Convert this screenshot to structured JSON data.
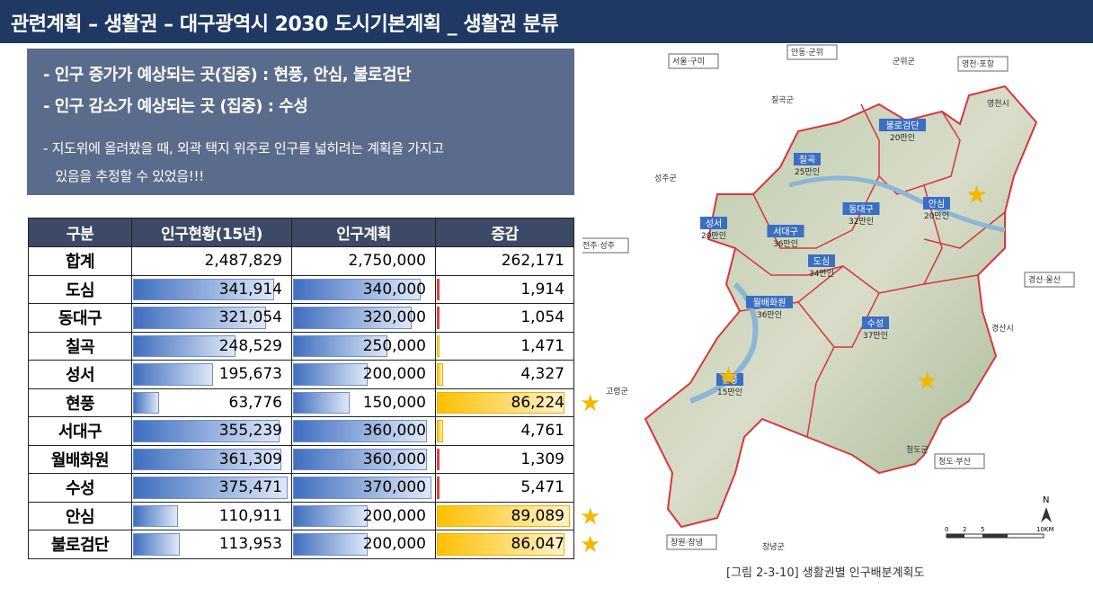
{
  "header": {
    "title": "관련계획 – 생활권 – 대구광역시 2030 도시기본계획 _ 생활권 분류"
  },
  "summary": {
    "bullet1": "-   인구 증가가 예상되는 곳(집중) : 현풍, 안심, 불로검단",
    "bullet2": "-   인구 감소가 예상되는 곳 (집중) : 수성",
    "note_line1": "- 지도위에 올려봤을 때, 외곽 택지 위주로 인구를 넓히려는 계획을 가지고",
    "note_line2": "   있음을 추정할 수 있었음!!!"
  },
  "table": {
    "headers": [
      "구분",
      "인구현황(15년)",
      "인구계획",
      "증감"
    ],
    "rows": [
      {
        "name": "합계",
        "current": "2,487,829",
        "plan": "2,750,000",
        "change": "262,171",
        "cur_frac": 0,
        "plan_frac": 0,
        "chg_frac": 0,
        "chg_type": "none",
        "star": false
      },
      {
        "name": "도심",
        "current": "341,914",
        "plan": "340,000",
        "change": "1,914",
        "cur_frac": 0.91,
        "plan_frac": 0.92,
        "chg_frac": 0.02,
        "chg_type": "neg",
        "star": false
      },
      {
        "name": "동대구",
        "current": "321,054",
        "plan": "320,000",
        "change": "1,054",
        "cur_frac": 0.86,
        "plan_frac": 0.86,
        "chg_frac": 0.01,
        "chg_type": "neg",
        "star": false
      },
      {
        "name": "칠곡",
        "current": "248,529",
        "plan": "250,000",
        "change": "1,471",
        "cur_frac": 0.66,
        "plan_frac": 0.68,
        "chg_frac": 0.02,
        "chg_type": "gold",
        "star": false
      },
      {
        "name": "성서",
        "current": "195,673",
        "plan": "200,000",
        "change": "4,327",
        "cur_frac": 0.52,
        "plan_frac": 0.54,
        "chg_frac": 0.05,
        "chg_type": "gold",
        "star": false
      },
      {
        "name": "현풍",
        "current": "63,776",
        "plan": "150,000",
        "change": "86,224",
        "cur_frac": 0.17,
        "plan_frac": 0.41,
        "chg_frac": 0.96,
        "chg_type": "gold",
        "star": true
      },
      {
        "name": "서대구",
        "current": "355,239",
        "plan": "360,000",
        "change": "4,761",
        "cur_frac": 0.95,
        "plan_frac": 0.97,
        "chg_frac": 0.05,
        "chg_type": "gold",
        "star": false
      },
      {
        "name": "월배화원",
        "current": "361,309",
        "plan": "360,000",
        "change": "1,309",
        "cur_frac": 0.96,
        "plan_frac": 0.97,
        "chg_frac": 0.01,
        "chg_type": "neg",
        "star": false
      },
      {
        "name": "수성",
        "current": "375,471",
        "plan": "370,000",
        "change": "5,471",
        "cur_frac": 1.0,
        "plan_frac": 1.0,
        "chg_frac": 0.06,
        "chg_type": "neg",
        "star": false
      },
      {
        "name": "안심",
        "current": "110,911",
        "plan": "200,000",
        "change": "89,089",
        "cur_frac": 0.29,
        "plan_frac": 0.54,
        "chg_frac": 1.0,
        "chg_type": "gold",
        "star": true
      },
      {
        "name": "불로검단",
        "current": "113,953",
        "plan": "200,000",
        "change": "86,047",
        "cur_frac": 0.3,
        "plan_frac": 0.54,
        "chg_frac": 0.96,
        "chg_type": "gold",
        "star": true
      }
    ]
  },
  "map": {
    "caption": "[그림 2-3-10]  생활권별 인구배분계획도",
    "north": "N",
    "scale": [
      "0",
      "2",
      "5",
      "10KM"
    ],
    "outer_labels": [
      "서울·구미",
      "안동·군위",
      "군위군",
      "영천·포항",
      "칠곡군",
      "영천시",
      "성주군",
      "전주·성주",
      "경산·울산",
      "경산시",
      "고령군",
      "청도군",
      "청도·부산",
      "창원·창녕",
      "창녕군"
    ],
    "districts": [
      {
        "name": "불로검단",
        "pop": "20만인"
      },
      {
        "name": "칠곡",
        "pop": "25만인"
      },
      {
        "name": "안심",
        "pop": "20만인"
      },
      {
        "name": "동대구",
        "pop": "32만인"
      },
      {
        "name": "성서",
        "pop": "20만인"
      },
      {
        "name": "서대구",
        "pop": "36만인"
      },
      {
        "name": "도심",
        "pop": "34만인"
      },
      {
        "name": "월배화원",
        "pop": "36만인"
      },
      {
        "name": "수성",
        "pop": "37만인"
      },
      {
        "name": "현풍",
        "pop": "15만인"
      }
    ]
  },
  "colors": {
    "header": "#1f3864",
    "summary": "#5b6b8c",
    "table_header": "#3d4a66",
    "bar_blue": "#3f6fc0",
    "bar_gold": "#ffc000",
    "bar_neg": "#e34141",
    "star": "#f5b700",
    "district_border": "#d9363e",
    "district_label": "#3b6fc4"
  }
}
